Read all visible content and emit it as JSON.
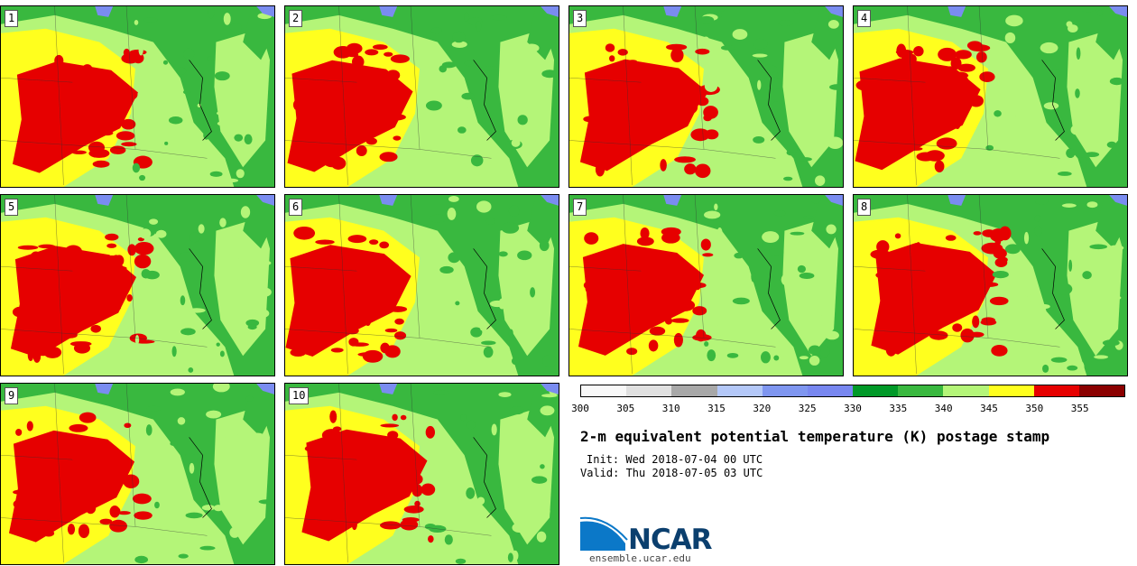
{
  "members": [
    "1",
    "2",
    "3",
    "4",
    "5",
    "6",
    "7",
    "8",
    "9",
    "10"
  ],
  "colorbar": {
    "ticks": [
      "300",
      "305",
      "310",
      "315",
      "320",
      "325",
      "330",
      "335",
      "340",
      "345",
      "350",
      "355"
    ],
    "colors": [
      "#f8f8f8",
      "#e0e0e0",
      "#a8a8a8",
      "#b4c8f8",
      "#7f96f0",
      "#7887f0",
      "#009928",
      "#39b83f",
      "#b4f578",
      "#ffff1e",
      "#e60000",
      "#8b0000"
    ]
  },
  "map_colors": {
    "dark_green": "#39b83f",
    "light_green": "#b4f578",
    "yellow": "#ffff1e",
    "red": "#e60000",
    "water": "#7a8cf0"
  },
  "title": "2-m equivalent potential temperature (K) postage stamp",
  "init": "Init: Wed 2018-07-04 00 UTC",
  "valid": "Valid: Thu 2018-07-05 03 UTC",
  "logo_text": "NCAR",
  "site": "ensemble.ucar.edu"
}
